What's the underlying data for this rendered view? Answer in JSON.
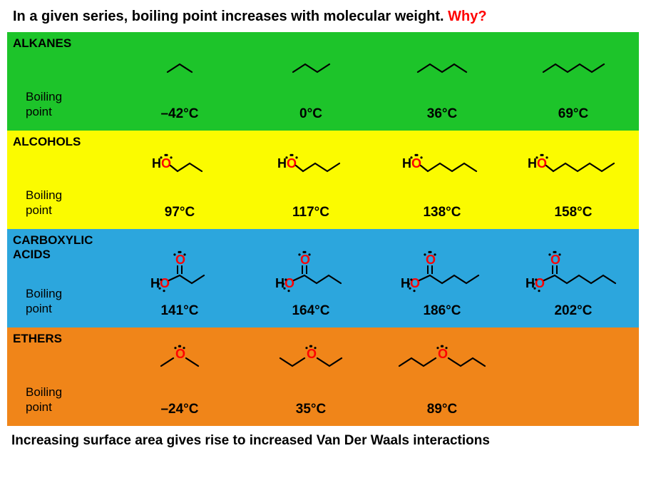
{
  "title_prefix": "In a given series, boiling point increases with molecular weight. ",
  "title_why": "Why?",
  "footnote": "Increasing surface area gives rise to increased Van Der Waals interactions",
  "bp_label": "Boiling\npoint",
  "rows": [
    {
      "name": "ALKANES",
      "color": "#1dc42a",
      "compounds": [
        {
          "bp": "–42°C",
          "carbons": 3,
          "type": "alkane"
        },
        {
          "bp": "0°C",
          "carbons": 4,
          "type": "alkane"
        },
        {
          "bp": "36°C",
          "carbons": 5,
          "type": "alkane"
        },
        {
          "bp": "69°C",
          "carbons": 6,
          "type": "alkane"
        }
      ]
    },
    {
      "name": "ALCOHOLS",
      "color": "#fbfb00",
      "compounds": [
        {
          "bp": "97°C",
          "carbons": 3,
          "type": "alcohol"
        },
        {
          "bp": "117°C",
          "carbons": 4,
          "type": "alcohol"
        },
        {
          "bp": "138°C",
          "carbons": 5,
          "type": "alcohol"
        },
        {
          "bp": "158°C",
          "carbons": 6,
          "type": "alcohol"
        }
      ]
    },
    {
      "name": "CARBOXYLIC\nACIDS",
      "color": "#2ca6dd",
      "compounds": [
        {
          "bp": "141°C",
          "carbons": 3,
          "type": "acid"
        },
        {
          "bp": "164°C",
          "carbons": 4,
          "type": "acid"
        },
        {
          "bp": "186°C",
          "carbons": 5,
          "type": "acid"
        },
        {
          "bp": "202°C",
          "carbons": 6,
          "type": "acid"
        }
      ]
    },
    {
      "name": "ETHERS",
      "color": "#f08519",
      "compounds": [
        {
          "bp": "–24°C",
          "each_side": 1,
          "type": "ether"
        },
        {
          "bp": "35°C",
          "each_side": 2,
          "type": "ether"
        },
        {
          "bp": "89°C",
          "each_side": 3,
          "type": "ether"
        },
        {
          "bp": "",
          "each_side": 0,
          "type": "empty"
        }
      ]
    }
  ],
  "styling": {
    "bond_color": "#000000",
    "oxygen_color": "#ff0000",
    "hydrogen_color": "#000000",
    "bond_width": 2.2,
    "zigzag_dx": 17,
    "zigzag_dy": 11
  }
}
